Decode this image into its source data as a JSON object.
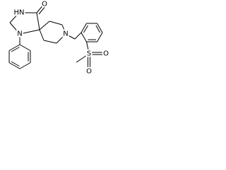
{
  "atoms": [
    {
      "label": "HN"
    },
    {
      "label": "O"
    },
    {
      "label": "N"
    },
    {
      "label": "N"
    },
    {
      "label": "S"
    },
    {
      "label": "O"
    },
    {
      "label": "O"
    }
  ]
}
